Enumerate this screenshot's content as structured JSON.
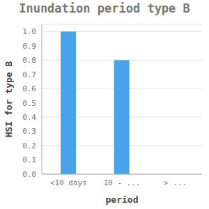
{
  "chart_data": {
    "type": "bar",
    "title": "Inundation period type B",
    "x_label": "period",
    "y_label": "HSI for type B",
    "categories": [
      "<10 days",
      "10 - ...",
      "> ..."
    ],
    "values": [
      1.0,
      0.8,
      0
    ],
    "color": "#4aa3e8",
    "ylim": [
      0,
      1.05
    ],
    "yticks": [
      {
        "value": 0,
        "label": "0.0"
      },
      0.1,
      0.2,
      0.3,
      0.4,
      0.5,
      0.6,
      0.7,
      0.8,
      0.9,
      {
        "value": 1,
        "label": "1.0"
      }
    ],
    "grid": true
  }
}
